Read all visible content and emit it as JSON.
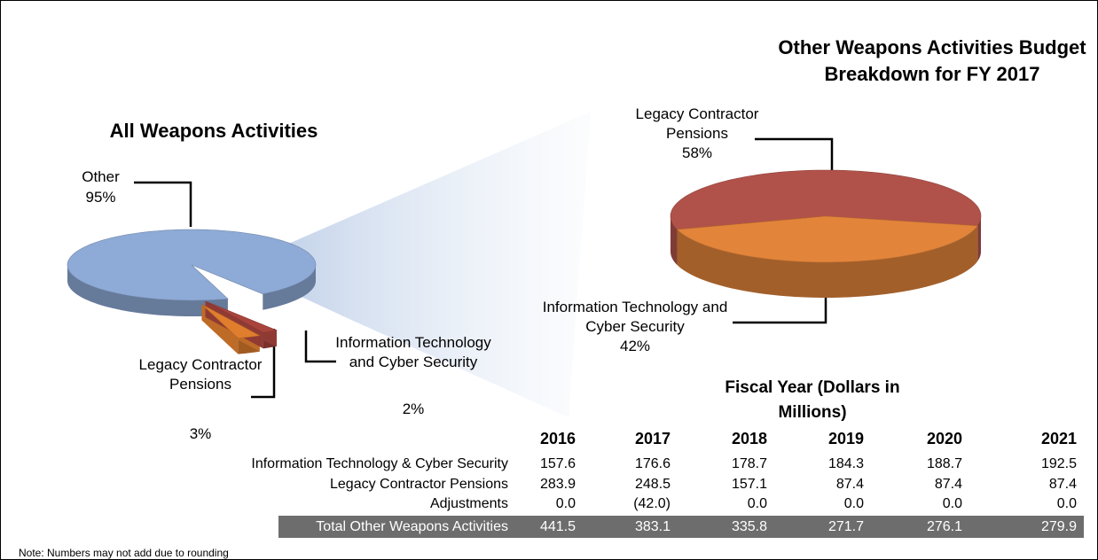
{
  "chart_data": [
    {
      "type": "pie",
      "title": "All Weapons Activities",
      "categories": [
        "Other",
        "Legacy Contractor Pensions",
        "Information Technology and Cyber Security"
      ],
      "values": [
        95,
        3,
        2
      ],
      "value_labels": [
        "95%",
        "3%",
        "2%"
      ],
      "colors": [
        "#8eaad6",
        "#e07e2e",
        "#a9443d"
      ]
    },
    {
      "type": "pie",
      "title": "Other Weapons Activities Budget Breakdown for FY 2017",
      "categories": [
        "Legacy Contractor Pensions",
        "Information Technology and Cyber Security"
      ],
      "values": [
        58,
        42
      ],
      "value_labels": [
        "58%",
        "42%"
      ],
      "colors": [
        "#b1524a",
        "#e2843a"
      ]
    }
  ],
  "table": {
    "header": "Fiscal Year (Dollars in Millions)",
    "columns": [
      "2016",
      "2017",
      "2018",
      "2019",
      "2020",
      "2021"
    ],
    "rows": [
      [
        "Information Technology & Cyber Security",
        "157.6",
        "176.6",
        "178.7",
        "184.3",
        "188.7",
        "192.5"
      ],
      [
        "Legacy Contractor Pensions",
        "283.9",
        "248.5",
        "157.1",
        "87.4",
        "87.4",
        "87.4"
      ],
      [
        "Adjustments",
        "0.0",
        "(42.0)",
        "0.0",
        "0.0",
        "0.0",
        "0.0"
      ],
      [
        "Total Other Weapons Activities",
        "441.5",
        "383.1",
        "335.8",
        "271.7",
        "276.1",
        "279.9"
      ]
    ]
  },
  "note": "Note: Numbers may not add due to rounding"
}
